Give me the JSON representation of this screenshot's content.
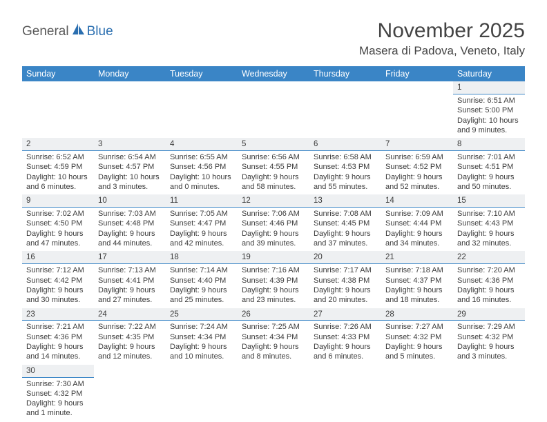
{
  "logo": {
    "part1": "General",
    "part2": "Blue"
  },
  "title": "November 2025",
  "location": "Masera di Padova, Veneto, Italy",
  "columns": [
    "Sunday",
    "Monday",
    "Tuesday",
    "Wednesday",
    "Thursday",
    "Friday",
    "Saturday"
  ],
  "colors": {
    "header_bg": "#3a85c6",
    "header_text": "#ffffff",
    "daynum_bg": "#eef0f2",
    "divider": "#3a85c6",
    "body_text": "#3b3b3b",
    "title_text": "#444444",
    "logo_gray": "#5a5a5a",
    "logo_blue": "#2b6fb0"
  },
  "weeks": [
    [
      null,
      null,
      null,
      null,
      null,
      null,
      {
        "n": "1",
        "sr": "Sunrise: 6:51 AM",
        "ss": "Sunset: 5:00 PM",
        "dl": "Daylight: 10 hours and 9 minutes."
      }
    ],
    [
      {
        "n": "2",
        "sr": "Sunrise: 6:52 AM",
        "ss": "Sunset: 4:59 PM",
        "dl": "Daylight: 10 hours and 6 minutes."
      },
      {
        "n": "3",
        "sr": "Sunrise: 6:54 AM",
        "ss": "Sunset: 4:57 PM",
        "dl": "Daylight: 10 hours and 3 minutes."
      },
      {
        "n": "4",
        "sr": "Sunrise: 6:55 AM",
        "ss": "Sunset: 4:56 PM",
        "dl": "Daylight: 10 hours and 0 minutes."
      },
      {
        "n": "5",
        "sr": "Sunrise: 6:56 AM",
        "ss": "Sunset: 4:55 PM",
        "dl": "Daylight: 9 hours and 58 minutes."
      },
      {
        "n": "6",
        "sr": "Sunrise: 6:58 AM",
        "ss": "Sunset: 4:53 PM",
        "dl": "Daylight: 9 hours and 55 minutes."
      },
      {
        "n": "7",
        "sr": "Sunrise: 6:59 AM",
        "ss": "Sunset: 4:52 PM",
        "dl": "Daylight: 9 hours and 52 minutes."
      },
      {
        "n": "8",
        "sr": "Sunrise: 7:01 AM",
        "ss": "Sunset: 4:51 PM",
        "dl": "Daylight: 9 hours and 50 minutes."
      }
    ],
    [
      {
        "n": "9",
        "sr": "Sunrise: 7:02 AM",
        "ss": "Sunset: 4:50 PM",
        "dl": "Daylight: 9 hours and 47 minutes."
      },
      {
        "n": "10",
        "sr": "Sunrise: 7:03 AM",
        "ss": "Sunset: 4:48 PM",
        "dl": "Daylight: 9 hours and 44 minutes."
      },
      {
        "n": "11",
        "sr": "Sunrise: 7:05 AM",
        "ss": "Sunset: 4:47 PM",
        "dl": "Daylight: 9 hours and 42 minutes."
      },
      {
        "n": "12",
        "sr": "Sunrise: 7:06 AM",
        "ss": "Sunset: 4:46 PM",
        "dl": "Daylight: 9 hours and 39 minutes."
      },
      {
        "n": "13",
        "sr": "Sunrise: 7:08 AM",
        "ss": "Sunset: 4:45 PM",
        "dl": "Daylight: 9 hours and 37 minutes."
      },
      {
        "n": "14",
        "sr": "Sunrise: 7:09 AM",
        "ss": "Sunset: 4:44 PM",
        "dl": "Daylight: 9 hours and 34 minutes."
      },
      {
        "n": "15",
        "sr": "Sunrise: 7:10 AM",
        "ss": "Sunset: 4:43 PM",
        "dl": "Daylight: 9 hours and 32 minutes."
      }
    ],
    [
      {
        "n": "16",
        "sr": "Sunrise: 7:12 AM",
        "ss": "Sunset: 4:42 PM",
        "dl": "Daylight: 9 hours and 30 minutes."
      },
      {
        "n": "17",
        "sr": "Sunrise: 7:13 AM",
        "ss": "Sunset: 4:41 PM",
        "dl": "Daylight: 9 hours and 27 minutes."
      },
      {
        "n": "18",
        "sr": "Sunrise: 7:14 AM",
        "ss": "Sunset: 4:40 PM",
        "dl": "Daylight: 9 hours and 25 minutes."
      },
      {
        "n": "19",
        "sr": "Sunrise: 7:16 AM",
        "ss": "Sunset: 4:39 PM",
        "dl": "Daylight: 9 hours and 23 minutes."
      },
      {
        "n": "20",
        "sr": "Sunrise: 7:17 AM",
        "ss": "Sunset: 4:38 PM",
        "dl": "Daylight: 9 hours and 20 minutes."
      },
      {
        "n": "21",
        "sr": "Sunrise: 7:18 AM",
        "ss": "Sunset: 4:37 PM",
        "dl": "Daylight: 9 hours and 18 minutes."
      },
      {
        "n": "22",
        "sr": "Sunrise: 7:20 AM",
        "ss": "Sunset: 4:36 PM",
        "dl": "Daylight: 9 hours and 16 minutes."
      }
    ],
    [
      {
        "n": "23",
        "sr": "Sunrise: 7:21 AM",
        "ss": "Sunset: 4:36 PM",
        "dl": "Daylight: 9 hours and 14 minutes."
      },
      {
        "n": "24",
        "sr": "Sunrise: 7:22 AM",
        "ss": "Sunset: 4:35 PM",
        "dl": "Daylight: 9 hours and 12 minutes."
      },
      {
        "n": "25",
        "sr": "Sunrise: 7:24 AM",
        "ss": "Sunset: 4:34 PM",
        "dl": "Daylight: 9 hours and 10 minutes."
      },
      {
        "n": "26",
        "sr": "Sunrise: 7:25 AM",
        "ss": "Sunset: 4:34 PM",
        "dl": "Daylight: 9 hours and 8 minutes."
      },
      {
        "n": "27",
        "sr": "Sunrise: 7:26 AM",
        "ss": "Sunset: 4:33 PM",
        "dl": "Daylight: 9 hours and 6 minutes."
      },
      {
        "n": "28",
        "sr": "Sunrise: 7:27 AM",
        "ss": "Sunset: 4:32 PM",
        "dl": "Daylight: 9 hours and 5 minutes."
      },
      {
        "n": "29",
        "sr": "Sunrise: 7:29 AM",
        "ss": "Sunset: 4:32 PM",
        "dl": "Daylight: 9 hours and 3 minutes."
      }
    ],
    [
      {
        "n": "30",
        "sr": "Sunrise: 7:30 AM",
        "ss": "Sunset: 4:32 PM",
        "dl": "Daylight: 9 hours and 1 minute."
      },
      null,
      null,
      null,
      null,
      null,
      null
    ]
  ]
}
